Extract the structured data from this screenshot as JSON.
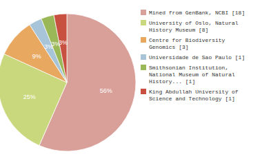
{
  "chart_data": {
    "type": "pie",
    "categories": [
      "Mined from GenBank, NCBI [18]",
      "University of Oslo, Natural\nHistory Museum [8]",
      "Centre for Biodiversity\nGenomics [3]",
      "Universidade de Sao Paulo [1]",
      "Smithsonian Institution,\nNational Museum of Natural\nHistory... [1]",
      "King Abdullah University of\nScience and Technology [1]"
    ],
    "values": [
      56,
      25,
      9,
      3,
      3,
      3
    ],
    "value_labels": [
      "56%",
      "25%",
      "9%",
      "3%",
      "3%",
      "3%"
    ],
    "colors": [
      "#d9a09a",
      "#c9d87c",
      "#e8a860",
      "#a8c4d8",
      "#9ab858",
      "#c85040"
    ],
    "data_labels": true,
    "legend": "right"
  }
}
